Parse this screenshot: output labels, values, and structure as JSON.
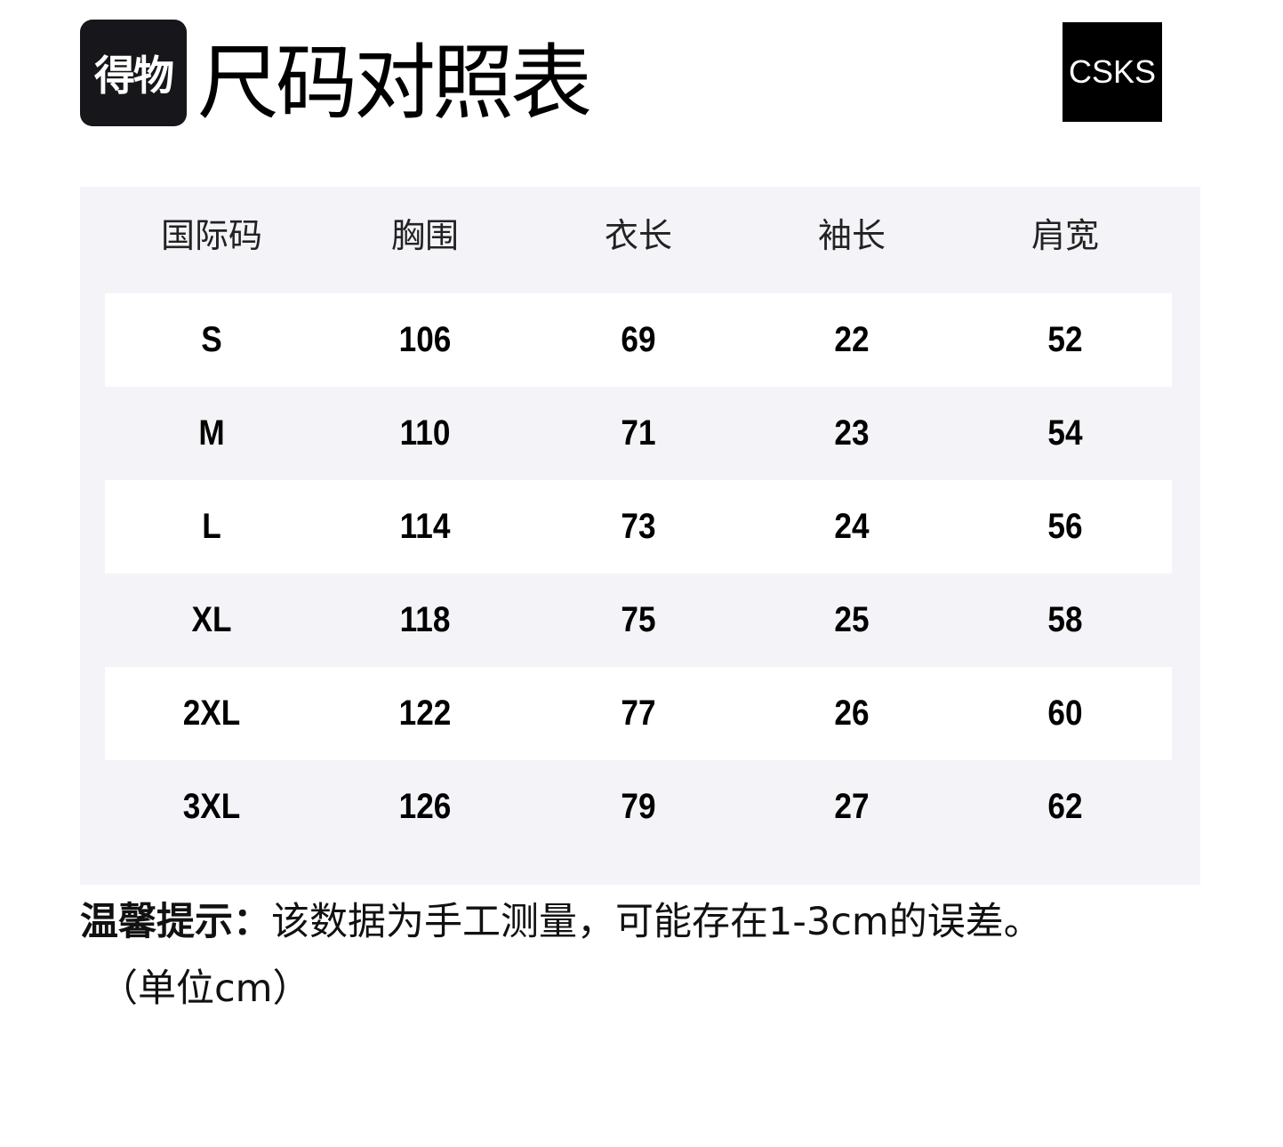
{
  "header": {
    "logo_text": "得物",
    "title": "尺码对照表",
    "brand": "CSKS"
  },
  "table": {
    "columns": [
      "国际码",
      "胸围",
      "衣长",
      "袖长",
      "肩宽"
    ],
    "rows": [
      [
        "S",
        "106",
        "69",
        "22",
        "52"
      ],
      [
        "M",
        "110",
        "71",
        "23",
        "54"
      ],
      [
        "L",
        "114",
        "73",
        "24",
        "56"
      ],
      [
        "XL",
        "118",
        "75",
        "25",
        "58"
      ],
      [
        "2XL",
        "122",
        "77",
        "26",
        "60"
      ],
      [
        "3XL",
        "126",
        "79",
        "27",
        "62"
      ]
    ]
  },
  "note": {
    "label": "温馨提示：",
    "text": "该数据为手工测量，可能存在1-3cm的误差。",
    "unit": "（单位cm）"
  }
}
